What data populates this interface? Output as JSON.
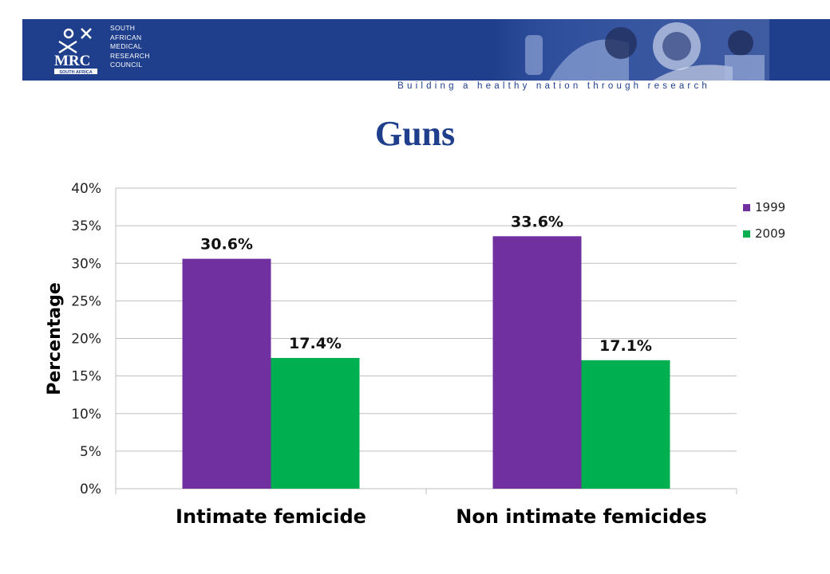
{
  "header": {
    "org_lines": [
      "SOUTH",
      "AFRICAN",
      "MEDICAL",
      "RESEARCH",
      "COUNCIL"
    ],
    "logo_text": "MRC",
    "logo_subtext": "SOUTH AFRICA",
    "tagline": "Building a healthy nation through research",
    "colors": {
      "banner": "#1f3f8c"
    }
  },
  "slide": {
    "title": "Guns"
  },
  "chart_data": {
    "type": "bar",
    "categories": [
      "Intimate femicide",
      "Non intimate femicides"
    ],
    "series": [
      {
        "name": "1999",
        "values": [
          30.6,
          33.6
        ],
        "labels": [
          "30.6%",
          "33.6%"
        ],
        "color": "#7030a0"
      },
      {
        "name": "2009",
        "values": [
          17.4,
          17.1
        ],
        "labels": [
          "17.4%",
          "17.1%"
        ],
        "color": "#00b050"
      }
    ],
    "ylabel": "Percentage",
    "xlabel": "",
    "ylim": [
      0,
      40
    ],
    "yticks": [
      "0%",
      "5%",
      "10%",
      "15%",
      "20%",
      "25%",
      "30%",
      "35%",
      "40%"
    ],
    "grid": true,
    "legend": "right"
  }
}
